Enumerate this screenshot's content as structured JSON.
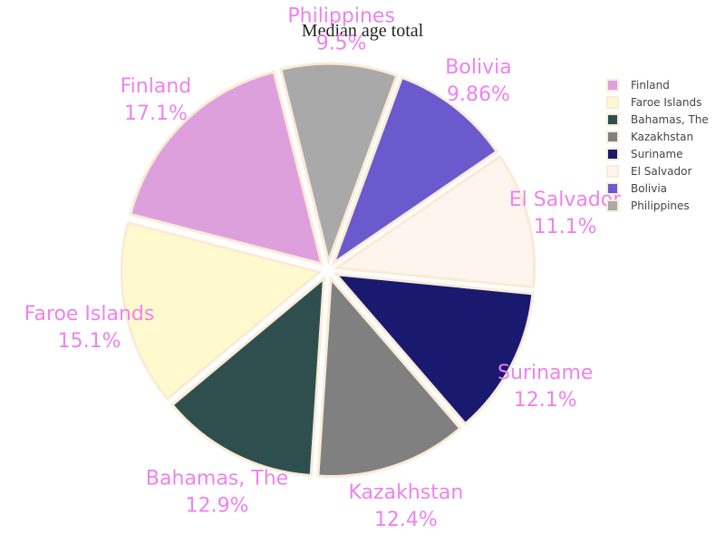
{
  "chart_data": {
    "type": "pie",
    "title": "Median age total",
    "slices": [
      {
        "label": "Finland",
        "value": 17.1,
        "percent_label": "17.1%",
        "color": "#DDA0DD"
      },
      {
        "label": "Faroe Islands",
        "value": 15.1,
        "percent_label": "15.1%",
        "color": "#FFFACD"
      },
      {
        "label": "Bahamas, The",
        "value": 12.9,
        "percent_label": "12.9%",
        "color": "#2F4F4F"
      },
      {
        "label": "Kazakhstan",
        "value": 12.4,
        "percent_label": "12.4%",
        "color": "#808080"
      },
      {
        "label": "Suriname",
        "value": 12.1,
        "percent_label": "12.1%",
        "color": "#191970"
      },
      {
        "label": "El Salvador",
        "value": 11.1,
        "percent_label": "11.1%",
        "color": "#FDF5EE"
      },
      {
        "label": "Bolivia",
        "value": 9.86,
        "percent_label": "9.86%",
        "color": "#6A5ACD"
      },
      {
        "label": "Philippines",
        "value": 9.5,
        "percent_label": "9.5%",
        "color": "#A9A9A9"
      }
    ],
    "slice_border_color": "#FAEBD7",
    "label_color": "#EE82EE",
    "direction": "counterclockwise",
    "exploded": true,
    "legend_placement": "right"
  }
}
